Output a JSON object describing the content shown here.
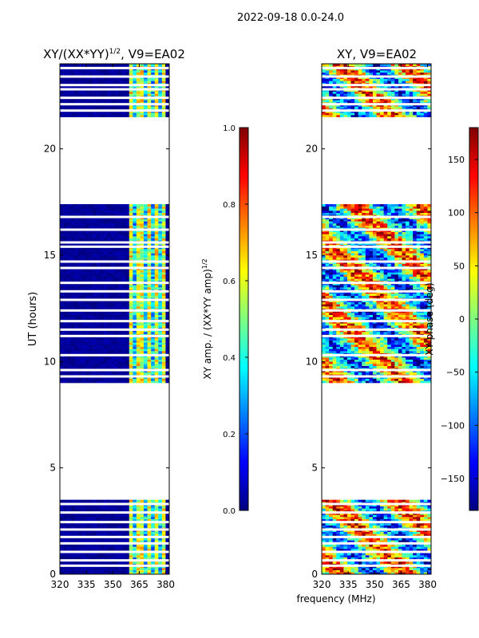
{
  "figure": {
    "suptitle": "2022-09-18 0.0-24.0",
    "xlabel": "frequency (MHz)",
    "ylabel": "UT (hours)"
  },
  "colors": {
    "no_data": "#ffffff",
    "jet": [
      "#00007f",
      "#0000ff",
      "#007fff",
      "#00ffff",
      "#7fff7f",
      "#ffff00",
      "#ff7f00",
      "#ff0000",
      "#7f0000"
    ]
  },
  "chart_data": [
    {
      "type": "heatmap",
      "title_parts": {
        "base": "XY/(XX*YY)",
        "sup": "1/2",
        "rest": ", V9=EA02"
      },
      "xlim": [
        320,
        382
      ],
      "ylim": [
        0,
        24
      ],
      "xticks": [
        320,
        335,
        350,
        365,
        380
      ],
      "xtick_labels": [
        "320",
        "335",
        "350",
        "365",
        "380"
      ],
      "yticks": [
        0,
        5,
        10,
        15,
        20
      ],
      "ytick_labels": [
        "0",
        "5",
        "10",
        "15",
        "20"
      ],
      "data_ut_ranges": [
        [
          0.0,
          3.5
        ],
        [
          9.0,
          17.4
        ],
        [
          21.5,
          24.0
        ]
      ],
      "gap_ut": [
        0.4,
        0.65,
        1.05,
        1.45,
        1.75,
        2.1,
        2.45,
        2.9,
        3.3,
        9.3,
        9.6,
        10.3,
        11.2,
        11.5,
        11.9,
        12.4,
        12.9,
        13.3,
        13.7,
        14.4,
        14.7,
        15.4,
        15.6,
        16.2,
        16.8,
        21.8,
        22.1,
        22.4,
        22.8,
        23.0,
        23.4,
        23.8
      ],
      "colorbar": {
        "label_base": "XY amp. / (XX*YY amp)",
        "label_sup": "1/2",
        "range": [
          0.0,
          1.0
        ],
        "ticks": [
          0.0,
          0.2,
          0.4,
          0.6,
          0.8,
          1.0
        ],
        "tick_labels": [
          "0.0",
          "0.2",
          "0.4",
          "0.6",
          "0.8",
          "1.0"
        ]
      }
    },
    {
      "type": "heatmap",
      "title": "XY, V9=EA02",
      "xlim": [
        320,
        382
      ],
      "ylim": [
        0,
        24
      ],
      "xticks": [
        320,
        335,
        350,
        365,
        380
      ],
      "xtick_labels": [
        "320",
        "335",
        "350",
        "365",
        "380"
      ],
      "yticks": [
        0,
        5,
        10,
        15,
        20
      ],
      "ytick_labels": [
        "0",
        "5",
        "10",
        "15",
        "20"
      ],
      "data_ut_ranges": [
        [
          0.0,
          3.5
        ],
        [
          9.0,
          17.4
        ],
        [
          21.5,
          24.0
        ]
      ],
      "gap_ut": [
        0.4,
        0.65,
        1.05,
        1.45,
        1.75,
        2.1,
        2.45,
        2.9,
        3.3,
        9.3,
        9.6,
        10.3,
        11.2,
        11.5,
        11.9,
        12.4,
        12.9,
        13.3,
        13.7,
        14.4,
        14.7,
        15.4,
        15.6,
        16.2,
        16.8,
        21.8,
        22.1,
        22.4,
        22.8,
        23.0,
        23.4,
        23.8
      ],
      "colorbar": {
        "label": "XY phase (deg)",
        "range": [
          -180,
          180
        ],
        "ticks": [
          -150,
          -100,
          -50,
          0,
          50,
          100,
          150
        ],
        "tick_labels": [
          "−150",
          "−100",
          "−50",
          "0",
          "50",
          "100",
          "150"
        ]
      }
    }
  ]
}
